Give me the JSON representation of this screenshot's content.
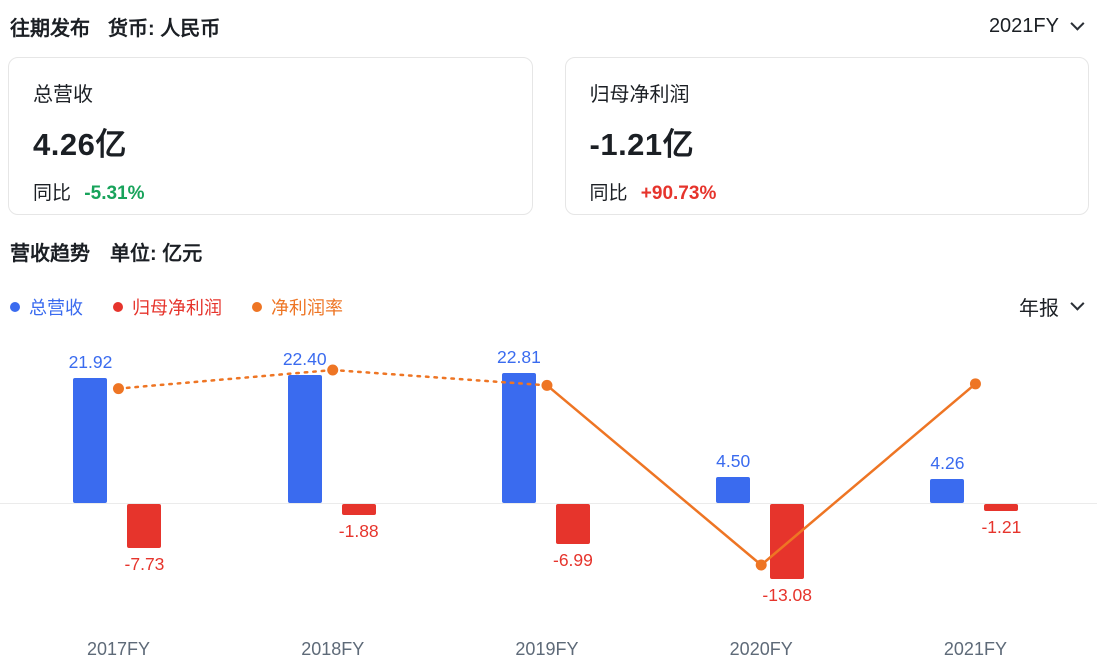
{
  "header": {
    "title": "往期发布",
    "currency_label": "货币: 人民币",
    "period_selected": "2021FY"
  },
  "cards": [
    {
      "title": "总营收",
      "value": "4.26亿",
      "yoy_label": "同比",
      "yoy_value": "-5.31%",
      "yoy_color": "#18a35b"
    },
    {
      "title": "归母净利润",
      "value": "-1.21亿",
      "yoy_label": "同比",
      "yoy_value": "+90.73%",
      "yoy_color": "#e6342c"
    }
  ],
  "section": {
    "title": "营收趋势",
    "unit_label": "单位: 亿元"
  },
  "legend": [
    {
      "label": "总营收",
      "color": "#3a6bef"
    },
    {
      "label": "归母净利润",
      "color": "#e6342c"
    },
    {
      "label": "净利润率",
      "color": "#ee7524"
    }
  ],
  "report_period_selected": "年报",
  "chart_data": {
    "type": "bar",
    "subtype": "grouped bars with secondary-axis line",
    "title": "营收趋势",
    "unit": "亿元",
    "categories": [
      "2017FY",
      "2018FY",
      "2019FY",
      "2020FY",
      "2021FY"
    ],
    "series": [
      {
        "name": "总营收",
        "type": "bar",
        "color": "#3a6bef",
        "values": [
          21.92,
          22.4,
          22.81,
          4.5,
          4.26
        ]
      },
      {
        "name": "归母净利润",
        "type": "bar",
        "color": "#e6342c",
        "values": [
          -7.73,
          -1.88,
          -6.99,
          -13.08,
          -1.21
        ]
      },
      {
        "name": "净利润率",
        "type": "line",
        "color": "#ee7524",
        "values_percent": [
          -35.3,
          -8.4,
          -30.6,
          -290.7,
          -28.4
        ],
        "segment_styles": [
          "dotted",
          "dotted",
          "solid",
          "solid"
        ]
      }
    ],
    "grid": "off",
    "axes_labels_shown": false,
    "legend_position": "top-left"
  }
}
